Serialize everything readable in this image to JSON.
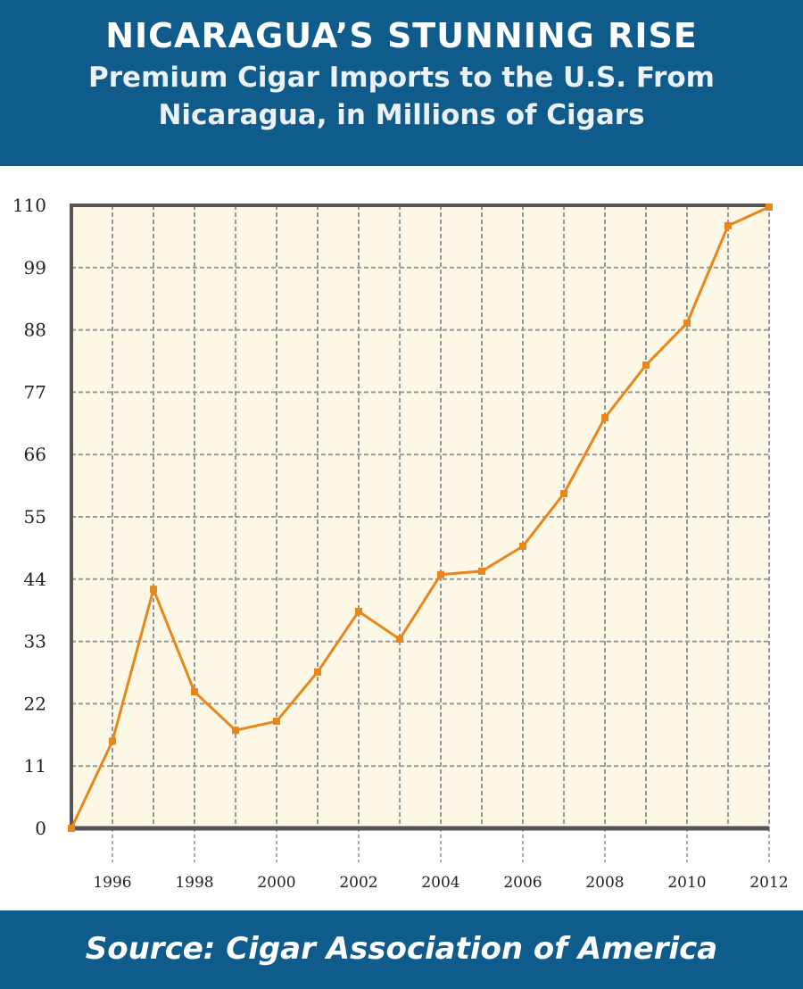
{
  "header": {
    "title": "NICARAGUA’S STUNNING RISE",
    "subtitle_line1": "Premium Cigar Imports to the U.S. From",
    "subtitle_line2": "Nicaragua, in Millions of Cigars"
  },
  "footer": {
    "source": "Source: Cigar Association of America"
  },
  "colors": {
    "header_bg": "#0f5c8c",
    "plot_bg": "#fdf8e6",
    "line": "#e8861a"
  },
  "chart_data": {
    "type": "line",
    "title": "NICARAGUA’S STUNNING RISE",
    "subtitle": "Premium Cigar Imports to the U.S. From Nicaragua, in Millions of Cigars",
    "xlabel": "",
    "ylabel": "",
    "x": [
      1995,
      1996,
      1997,
      1998,
      1999,
      2000,
      2001,
      2002,
      2003,
      2004,
      2005,
      2006,
      2007,
      2008,
      2009,
      2010,
      2011,
      2012
    ],
    "values": [
      0,
      15.4,
      42.2,
      24.1,
      17.3,
      18.9,
      27.6,
      38.3,
      33.4,
      44.8,
      45.4,
      49.8,
      59.1,
      72.5,
      81.8,
      89.2,
      106.4,
      109.7
    ],
    "xlim": [
      1995,
      2012
    ],
    "ylim": [
      0,
      110
    ],
    "yticks": [
      0,
      11,
      22,
      33,
      44,
      55,
      66,
      77,
      88,
      99,
      110
    ],
    "xticks": [
      1996,
      1998,
      2000,
      2002,
      2004,
      2006,
      2008,
      2010,
      2012
    ],
    "grid": true,
    "legend": "none"
  }
}
